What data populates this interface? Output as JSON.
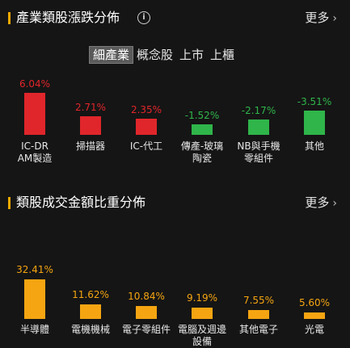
{
  "section1": {
    "title": "產業類股漲跌分佈",
    "info_icon": "info-icon",
    "more_label": "更多",
    "tabs": [
      "細產業",
      "概念股",
      "上市",
      "上櫃"
    ],
    "active_tab": 0,
    "chart_data": {
      "type": "bar",
      "categories": [
        "IC-DRAM製造",
        "掃描器",
        "IC-代工",
        "傳產-玻璃陶瓷",
        "NB與手機零組件",
        "其他"
      ],
      "values": [
        6.04,
        2.71,
        2.35,
        -1.52,
        -2.17,
        -3.51
      ],
      "value_labels": [
        "6.04%",
        "2.71%",
        "2.35%",
        "-1.52%",
        "-2.17%",
        "-3.51%"
      ],
      "display_labels": [
        "IC-DR\nAM製造",
        "掃描器",
        "IC-代工",
        "傳產-玻璃\n陶瓷",
        "NB與手機\n零組件",
        "其他"
      ],
      "colors": {
        "up": "#e0262b",
        "down": "#2fb54a",
        "up_text": "#e0262b",
        "down_text": "#2fb54a"
      }
    }
  },
  "section2": {
    "title": "類股成交金額比重分佈",
    "more_label": "更多",
    "chart_data": {
      "type": "bar",
      "categories": [
        "半導體",
        "電機機械",
        "電子零組件",
        "電腦及週邊設備",
        "其他電子",
        "光電"
      ],
      "values": [
        32.41,
        11.62,
        10.84,
        9.19,
        7.55,
        5.6
      ],
      "value_labels": [
        "32.41%",
        "11.62%",
        "10.84%",
        "9.19%",
        "7.55%",
        "5.60%"
      ],
      "display_labels": [
        "半導體",
        "電機機械",
        "電子零組件",
        "電腦及週邊\n設備",
        "其他電子",
        "光電"
      ],
      "colors": {
        "bar": "#f5a511",
        "text": "#f5a511"
      }
    }
  },
  "colors": {
    "background": "#151515",
    "accent": "#f2a900"
  }
}
